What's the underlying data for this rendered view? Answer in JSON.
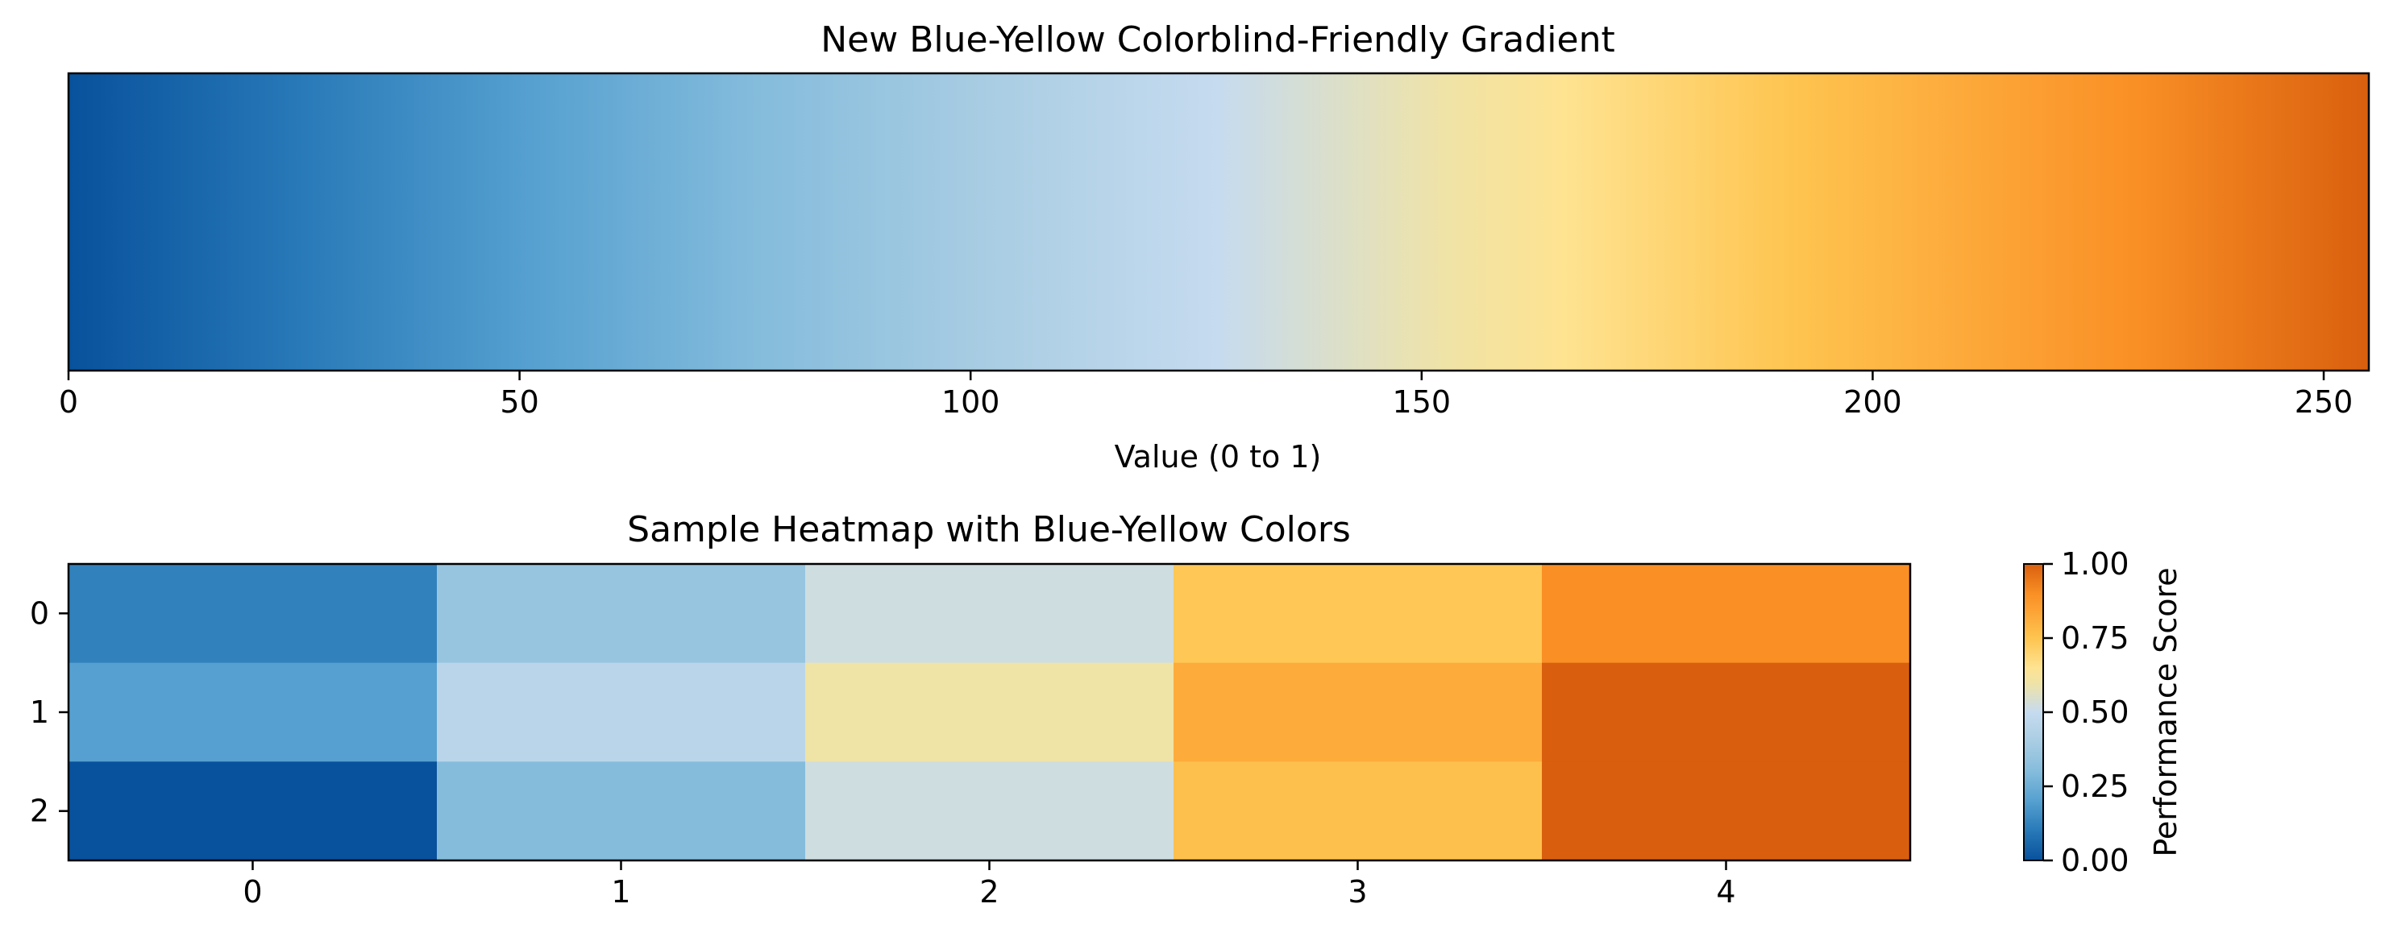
{
  "colormap": {
    "name": "blue-yellow",
    "stops": [
      {
        "pos": 0.0,
        "color": "#08519c"
      },
      {
        "pos": 0.1,
        "color": "#2879b8"
      },
      {
        "pos": 0.2,
        "color": "#55a0d0"
      },
      {
        "pos": 0.3,
        "color": "#85bcdc"
      },
      {
        "pos": 0.4,
        "color": "#a9cde3"
      },
      {
        "pos": 0.5,
        "color": "#c6dbef"
      },
      {
        "pos": 0.6,
        "color": "#f0e3a6"
      },
      {
        "pos": 0.65,
        "color": "#fee391"
      },
      {
        "pos": 0.75,
        "color": "#fec44f"
      },
      {
        "pos": 0.85,
        "color": "#fca033"
      },
      {
        "pos": 0.9,
        "color": "#f98f25"
      },
      {
        "pos": 1.0,
        "color": "#d95f0e"
      }
    ]
  },
  "chart_data": [
    {
      "type": "heatmap",
      "title": "New Blue-Yellow Colorblind-Friendly Gradient",
      "xlabel": "Value (0 to 1)",
      "ylabel": "",
      "xlim": [
        0,
        255
      ],
      "xticks": [
        0,
        50,
        100,
        150,
        200,
        250
      ],
      "xtick_labels": [
        "0",
        "50",
        "100",
        "150",
        "200",
        "250"
      ],
      "y_ticks": "none",
      "grid": false
    },
    {
      "type": "heatmap",
      "title": "Sample Heatmap with Blue-Yellow Colors",
      "xlabel": "",
      "ylabel": "",
      "x_categories": [
        "0",
        "1",
        "2",
        "3",
        "4"
      ],
      "y_categories": [
        "0",
        "1",
        "2"
      ],
      "values": [
        [
          0.12,
          0.35,
          0.52,
          0.74,
          0.9
        ],
        [
          0.2,
          0.46,
          0.6,
          0.82,
          1.0
        ],
        [
          0.0,
          0.3,
          0.52,
          0.76,
          1.0
        ]
      ],
      "colorbar": {
        "label": "Performance Score",
        "range": [
          0,
          1
        ],
        "ticks": [
          0.0,
          0.25,
          0.5,
          0.75,
          1.0
        ],
        "tick_labels": [
          "0.00",
          "0.25",
          "0.50",
          "0.75",
          "1.00"
        ]
      },
      "grid": false
    }
  ]
}
